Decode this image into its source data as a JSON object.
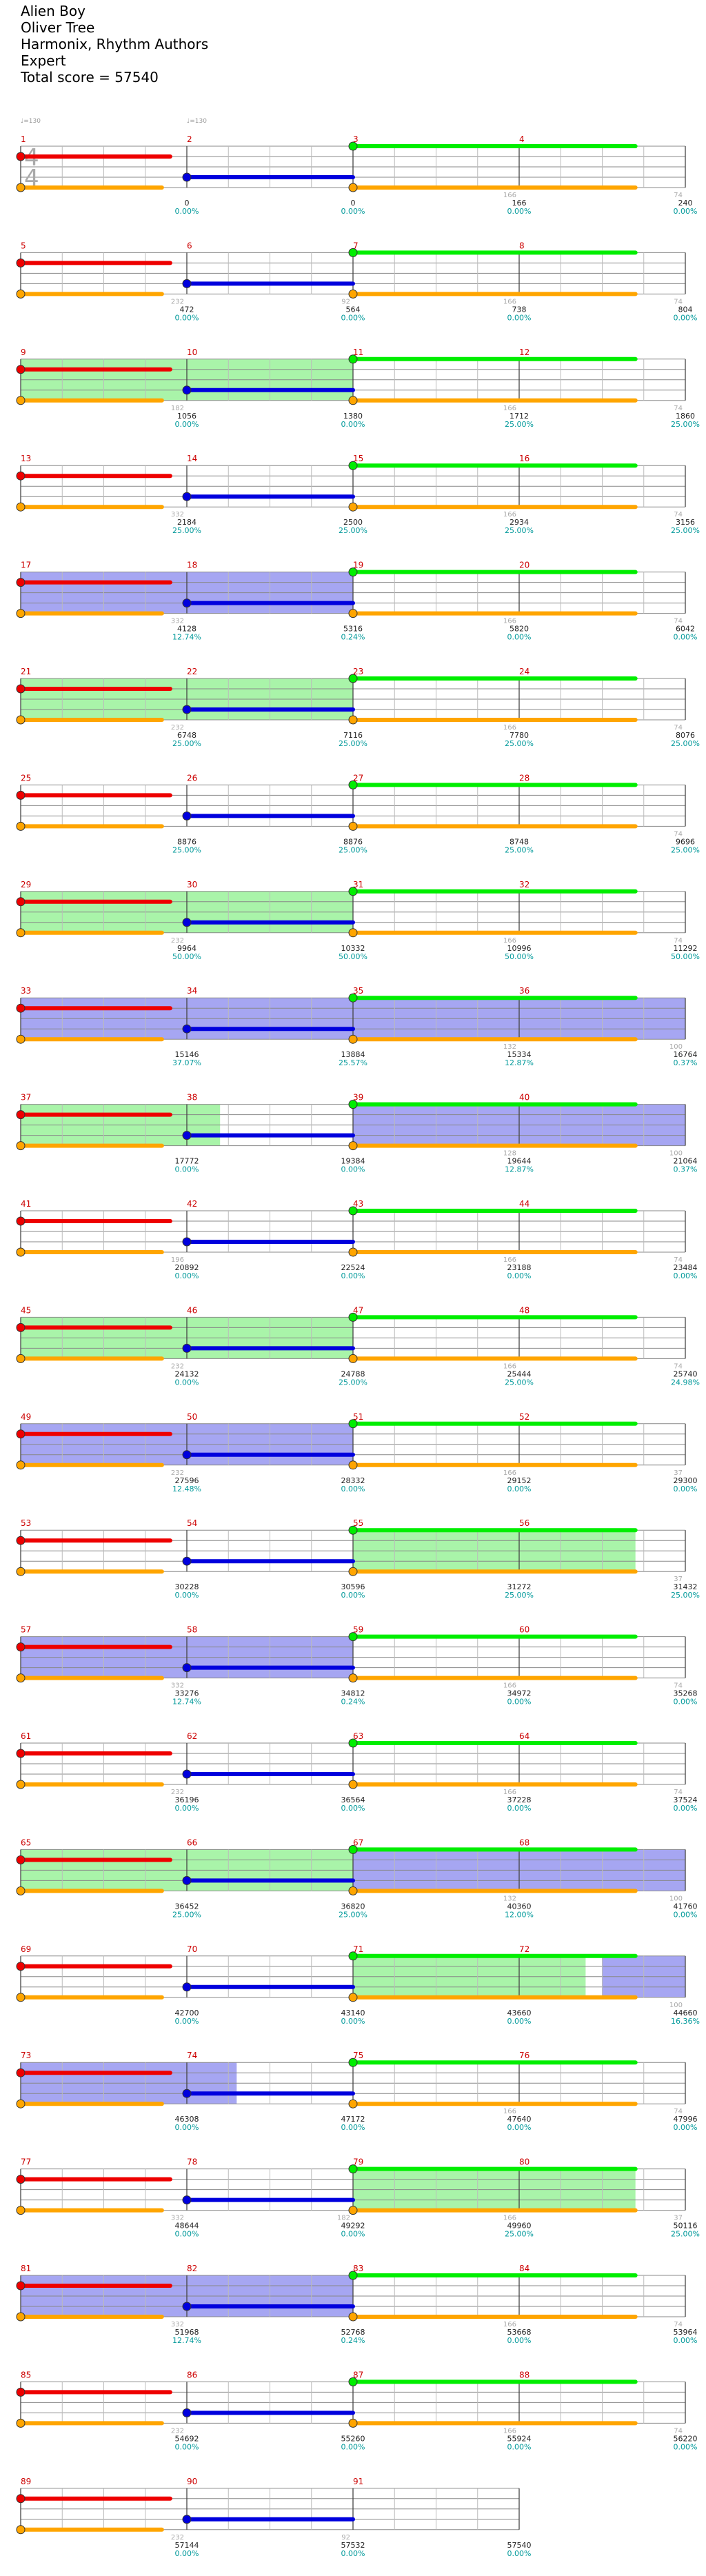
{
  "header": {
    "song": "Alien Boy",
    "artist": "Oliver Tree",
    "charter": "Harmonix, Rhythm Authors",
    "difficulty": "Expert",
    "total": "Total score = 57540"
  },
  "time_signature": [
    "4",
    "4"
  ],
  "bpm_markers": [
    "♩=130",
    "♩=130"
  ],
  "colors": {
    "green_note": "#00ee00",
    "red_note": "#ee0000",
    "yellow_note": "#eeee00",
    "blue_note": "#0000dd",
    "orange_note": "#ffa500",
    "purple_note": "#aa00aa",
    "sp_phrase": "#8cf08c",
    "overdrive": "#8888ee",
    "measure_number": "#cc0000",
    "score_percent": "#00999a"
  },
  "rows": [
    {
      "m": [
        "1",
        "2",
        "3",
        "4"
      ],
      "s": [
        "0",
        "0",
        "166",
        "240"
      ],
      "p": [
        "0.00%",
        "0.00%",
        "0.00%",
        "0.00%"
      ],
      "t": [
        "",
        "",
        "166",
        "74"
      ],
      "act": []
    },
    {
      "m": [
        "5",
        "6",
        "7",
        "8"
      ],
      "s": [
        "472",
        "564",
        "738",
        "804"
      ],
      "p": [
        "0.00%",
        "0.00%",
        "0.00%",
        "0.00%"
      ],
      "t": [
        "232",
        "92",
        "166",
        "74"
      ],
      "act": []
    },
    {
      "m": [
        "9",
        "10",
        "11",
        "12"
      ],
      "s": [
        "1056",
        "1380",
        "1712",
        "1860"
      ],
      "p": [
        "0.00%",
        "0.00%",
        "25.00%",
        "25.00%"
      ],
      "t": [
        "182",
        "",
        "166",
        "74"
      ],
      "act": [
        [
          "g",
          0,
          2
        ]
      ]
    },
    {
      "m": [
        "13",
        "14",
        "15",
        "16"
      ],
      "s": [
        "2184",
        "2500",
        "2934",
        "3156"
      ],
      "p": [
        "25.00%",
        "25.00%",
        "25.00%",
        "25.00%"
      ],
      "t": [
        "332",
        "",
        "166",
        "74"
      ],
      "act": []
    },
    {
      "m": [
        "17",
        "18",
        "19",
        "20"
      ],
      "s": [
        "4128",
        "5316",
        "5820",
        "6042"
      ],
      "p": [
        "12.74%",
        "0.24%",
        "0.00%",
        "0.00%"
      ],
      "t": [
        "332",
        "",
        "166",
        "74"
      ],
      "act": [
        [
          "b",
          0,
          2
        ]
      ]
    },
    {
      "m": [
        "21",
        "22",
        "23",
        "24"
      ],
      "s": [
        "6748",
        "7116",
        "7780",
        "8076"
      ],
      "p": [
        "25.00%",
        "25.00%",
        "25.00%",
        "25.00%"
      ],
      "t": [
        "232",
        "",
        "166",
        "74"
      ],
      "act": [
        [
          "g",
          0,
          2
        ]
      ]
    },
    {
      "m": [
        "25",
        "26",
        "27",
        "28"
      ],
      "s": [
        "8876",
        "8876",
        "8748",
        "9696"
      ],
      "p": [
        "25.00%",
        "25.00%",
        "25.00%",
        "25.00%"
      ],
      "t": [
        "",
        "",
        "",
        "74"
      ],
      "act": []
    },
    {
      "m": [
        "29",
        "30",
        "31",
        "32"
      ],
      "s": [
        "9964",
        "10332",
        "10996",
        "11292"
      ],
      "p": [
        "50.00%",
        "50.00%",
        "50.00%",
        "50.00%"
      ],
      "t": [
        "232",
        "",
        "166",
        "74"
      ],
      "act": [
        [
          "g",
          0,
          2
        ]
      ]
    },
    {
      "m": [
        "33",
        "34",
        "35",
        "36"
      ],
      "s": [
        "15146",
        "13884",
        "15334",
        "16764"
      ],
      "p": [
        "37.07%",
        "25.57%",
        "12.87%",
        "0.37%"
      ],
      "t": [
        "",
        "",
        "132",
        "100"
      ],
      "act": [
        [
          "b",
          0,
          4
        ]
      ]
    },
    {
      "m": [
        "37",
        "38",
        "39",
        "40"
      ],
      "s": [
        "17772",
        "19384",
        "19644",
        "21064"
      ],
      "p": [
        "0.00%",
        "0.00%",
        "12.87%",
        "0.37%"
      ],
      "t": [
        "",
        "",
        "128",
        "100"
      ],
      "act": [
        [
          "g",
          0,
          1.2
        ],
        [
          "b",
          2,
          4
        ]
      ]
    },
    {
      "m": [
        "41",
        "42",
        "43",
        "44"
      ],
      "s": [
        "20892",
        "22524",
        "23188",
        "23484"
      ],
      "p": [
        "0.00%",
        "0.00%",
        "0.00%",
        "0.00%"
      ],
      "t": [
        "196",
        "",
        "166",
        "74"
      ],
      "act": []
    },
    {
      "m": [
        "45",
        "46",
        "47",
        "48"
      ],
      "s": [
        "24132",
        "24788",
        "25444",
        "25740"
      ],
      "p": [
        "0.00%",
        "25.00%",
        "25.00%",
        "24.98%"
      ],
      "t": [
        "232",
        "",
        "166",
        "74"
      ],
      "act": [
        [
          "g",
          0,
          2
        ]
      ]
    },
    {
      "m": [
        "49",
        "50",
        "51",
        "52"
      ],
      "s": [
        "27596",
        "28332",
        "29152",
        "29300"
      ],
      "p": [
        "12.48%",
        "0.00%",
        "0.00%",
        "0.00%"
      ],
      "t": [
        "232",
        "",
        "166",
        "37"
      ],
      "act": [
        [
          "b",
          0,
          2
        ]
      ]
    },
    {
      "m": [
        "53",
        "54",
        "55",
        "56"
      ],
      "s": [
        "30228",
        "30596",
        "31272",
        "31432"
      ],
      "p": [
        "0.00%",
        "0.00%",
        "25.00%",
        "25.00%"
      ],
      "t": [
        "",
        "",
        "",
        "37"
      ],
      "act": [
        [
          "g",
          2,
          3.7
        ]
      ]
    },
    {
      "m": [
        "57",
        "58",
        "59",
        "60"
      ],
      "s": [
        "33276",
        "34812",
        "34972",
        "35268"
      ],
      "p": [
        "12.74%",
        "0.24%",
        "0.00%",
        "0.00%"
      ],
      "t": [
        "332",
        "",
        "166",
        "74"
      ],
      "act": [
        [
          "b",
          0,
          2
        ]
      ]
    },
    {
      "m": [
        "61",
        "62",
        "63",
        "64"
      ],
      "s": [
        "36196",
        "36564",
        "37228",
        "37524"
      ],
      "p": [
        "0.00%",
        "0.00%",
        "0.00%",
        "0.00%"
      ],
      "t": [
        "232",
        "",
        "166",
        "74"
      ],
      "act": []
    },
    {
      "m": [
        "65",
        "66",
        "67",
        "68"
      ],
      "s": [
        "36452",
        "36820",
        "40360",
        "41760"
      ],
      "p": [
        "25.00%",
        "25.00%",
        "12.00%",
        "0.00%"
      ],
      "t": [
        "",
        "",
        "132",
        "100"
      ],
      "act": [
        [
          "g",
          0,
          2
        ],
        [
          "b",
          2,
          4
        ]
      ]
    },
    {
      "m": [
        "69",
        "70",
        "71",
        "72"
      ],
      "s": [
        "42700",
        "43140",
        "43660",
        "44660"
      ],
      "p": [
        "0.00%",
        "0.00%",
        "0.00%",
        "16.36%"
      ],
      "t": [
        "",
        "",
        "",
        "100"
      ],
      "act": [
        [
          "g",
          2,
          3.4
        ],
        [
          "b",
          3.5,
          4
        ]
      ]
    },
    {
      "m": [
        "73",
        "74",
        "75",
        "76"
      ],
      "s": [
        "46308",
        "47172",
        "47640",
        "47996"
      ],
      "p": [
        "0.00%",
        "0.00%",
        "0.00%",
        "0.00%"
      ],
      "t": [
        "",
        "",
        "166",
        "74"
      ],
      "act": [
        [
          "b",
          0,
          1.3
        ]
      ]
    },
    {
      "m": [
        "77",
        "78",
        "79",
        "80"
      ],
      "s": [
        "48644",
        "49292",
        "49960",
        "50116"
      ],
      "p": [
        "0.00%",
        "0.00%",
        "25.00%",
        "25.00%"
      ],
      "t": [
        "332",
        "182",
        "166",
        "37"
      ],
      "act": [
        [
          "g",
          2,
          3.7
        ]
      ]
    },
    {
      "m": [
        "81",
        "82",
        "83",
        "84"
      ],
      "s": [
        "51968",
        "52768",
        "53668",
        "53964"
      ],
      "p": [
        "12.74%",
        "0.24%",
        "0.00%",
        "0.00%"
      ],
      "t": [
        "332",
        "",
        "166",
        "74"
      ],
      "act": [
        [
          "b",
          0,
          2
        ]
      ]
    },
    {
      "m": [
        "85",
        "86",
        "87",
        "88"
      ],
      "s": [
        "54692",
        "55260",
        "55924",
        "56220"
      ],
      "p": [
        "0.00%",
        "0.00%",
        "0.00%",
        "0.00%"
      ],
      "t": [
        "232",
        "",
        "166",
        "74"
      ],
      "act": []
    },
    {
      "m": [
        "89",
        "90",
        "91",
        ""
      ],
      "s": [
        "57144",
        "57532",
        "57540",
        ""
      ],
      "p": [
        "0.00%",
        "0.00%",
        "0.00%",
        ""
      ],
      "t": [
        "232",
        "92",
        "",
        ""
      ],
      "act": []
    }
  ]
}
